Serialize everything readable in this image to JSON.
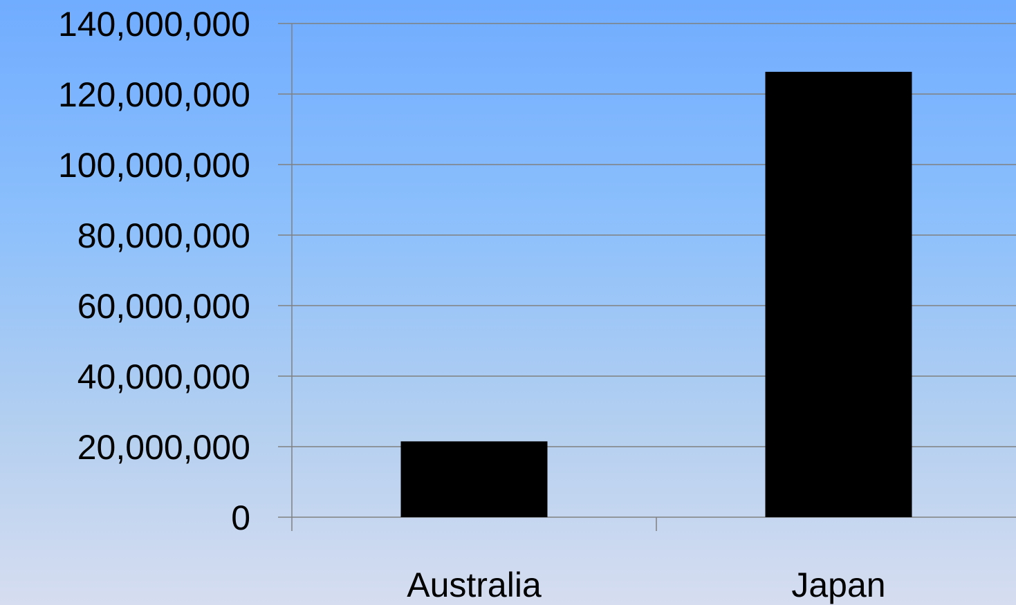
{
  "chart_data": {
    "type": "bar",
    "title": "",
    "xlabel": "",
    "ylabel": "",
    "categories": [
      "Australia",
      "Japan"
    ],
    "values": [
      21500000,
      126300000
    ],
    "ylim": [
      0,
      140000000
    ],
    "y_ticks": [
      0,
      20000000,
      40000000,
      60000000,
      80000000,
      100000000,
      120000000,
      140000000
    ],
    "y_tick_labels": [
      "0",
      "20,000,000",
      "40,000,000",
      "60,000,000",
      "80,000,000",
      "100,000,000",
      "120,000,000",
      "140,000,000"
    ],
    "grid": true,
    "legend": "none",
    "colors": {
      "bar": "#000000",
      "grid": "#808080",
      "text": "#000000"
    }
  }
}
